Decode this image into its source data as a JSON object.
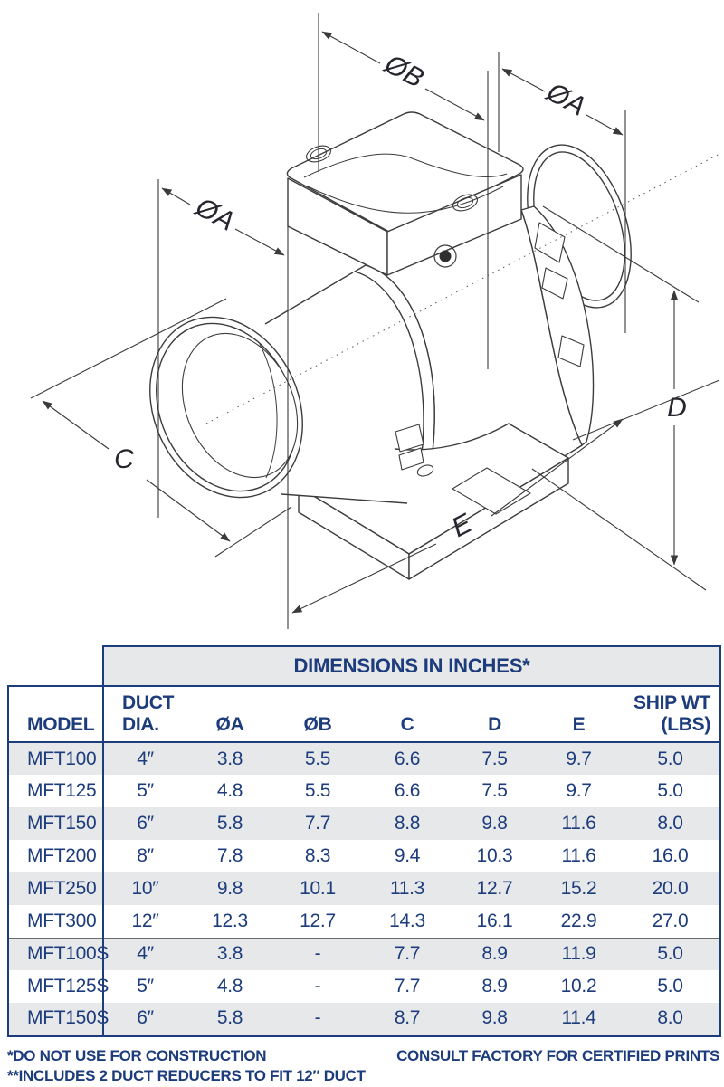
{
  "diagram": {
    "name": "inline-mixed-flow-duct-fan-dimension-drawing",
    "labels": {
      "dia_b": "ØB",
      "dia_a_outlet": "ØA",
      "dia_a_inlet": "ØA",
      "c": "C",
      "d": "D",
      "e": "E"
    }
  },
  "table": {
    "title": "DIMENSIONS IN INCHES*",
    "columns": [
      {
        "lines": [
          "MODEL"
        ],
        "align": "al"
      },
      {
        "lines": [
          "DUCT",
          "DIA."
        ],
        "align": "al"
      },
      {
        "lines": [
          "ØA"
        ],
        "align": "ac"
      },
      {
        "lines": [
          "ØB"
        ],
        "align": "ac"
      },
      {
        "lines": [
          "C"
        ],
        "align": "ac"
      },
      {
        "lines": [
          "D"
        ],
        "align": "ac"
      },
      {
        "lines": [
          "E"
        ],
        "align": "ac"
      },
      {
        "lines": [
          "SHIP WT",
          "(LBS)"
        ],
        "align": "ar"
      }
    ],
    "rows": [
      [
        "MFT100",
        "4″",
        "3.8",
        "5.5",
        "6.6",
        "7.5",
        "9.7",
        "5.0"
      ],
      [
        "MFT125",
        "5″",
        "4.8",
        "5.5",
        "6.6",
        "7.5",
        "9.7",
        "5.0"
      ],
      [
        "MFT150",
        "6″",
        "5.8",
        "7.7",
        "8.8",
        "9.8",
        "11.6",
        "8.0"
      ],
      [
        "MFT200",
        "8″",
        "7.8",
        "8.3",
        "9.4",
        "10.3",
        "11.6",
        "16.0"
      ],
      [
        "MFT250",
        "10″",
        "9.8",
        "10.1",
        "11.3",
        "12.7",
        "15.2",
        "20.0"
      ],
      [
        "MFT300",
        "12″",
        "12.3",
        "12.7",
        "14.3",
        "16.1",
        "22.9",
        "27.0"
      ],
      [
        "MFT100S",
        "4″",
        "3.8",
        "-",
        "7.7",
        "8.9",
        "11.9",
        "5.0"
      ],
      [
        "MFT125S",
        "5″",
        "4.8",
        "-",
        "7.7",
        "8.9",
        "10.2",
        "5.0"
      ],
      [
        "MFT150S",
        "6″",
        "5.8",
        "-",
        "8.7",
        "9.8",
        "11.4",
        "8.0"
      ]
    ],
    "group_separator_before_row": 6,
    "shaded_rows": [
      0,
      2,
      4,
      6,
      8
    ]
  },
  "footnotes": {
    "left_line1": "*DO NOT USE FOR CONSTRUCTION",
    "right_line1": "CONSULT FACTORY FOR CERTIFIED PRINTS",
    "left_line2": "**INCLUDES 2 DUCT REDUCERS TO FIT 12″ DUCT"
  },
  "colors": {
    "navy": "#1d3c7c",
    "row_shade": "#e7e8ea",
    "band_background": "#e7e8ea",
    "drawing_line": "#3c3c3c",
    "group_separator": "#6b6b6b"
  }
}
